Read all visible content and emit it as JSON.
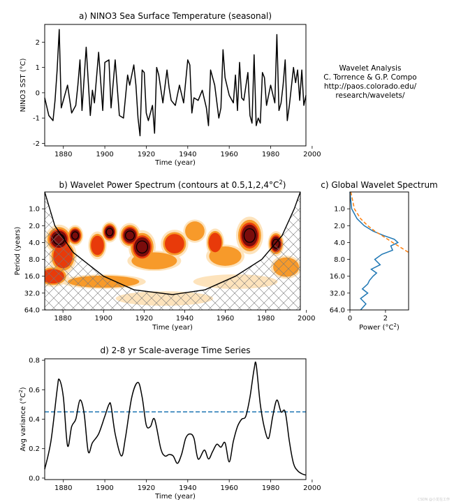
{
  "annotation": {
    "lines": [
      "Wavelet Analysis",
      "C. Torrence & G.P. Compo",
      "http://paos.colorado.edu/",
      "research/wavelets/"
    ]
  },
  "watermark": "CSDN @小龙在工作",
  "colors": {
    "line": "#000000",
    "power_dark": "#7a0c0c",
    "power_red": "#e83a0a",
    "power_orange": "#f79a2a",
    "power_light": "#fde3bc",
    "global_spectrum": "#1f77b4",
    "significance": "#ff7f0e",
    "threshold": "#1f77b4"
  },
  "chart_data": [
    {
      "id": "a",
      "type": "line",
      "title": "a) NINO3 Sea Surface Temperature (seasonal)",
      "xlabel": "Time (year)",
      "ylabel": "NINO3 SST (°C)",
      "xlim": [
        1871,
        1997
      ],
      "ylim": [
        -2.1,
        2.7
      ],
      "xticks": [
        1880,
        1900,
        1920,
        1940,
        1960,
        1980,
        2000
      ],
      "yticks": [
        -2,
        -1,
        0,
        1,
        2
      ],
      "x": [
        1871,
        1873,
        1875,
        1876,
        1877,
        1878,
        1879,
        1880,
        1882,
        1884,
        1886,
        1887,
        1888,
        1889,
        1891,
        1893,
        1894,
        1895,
        1897,
        1899,
        1900,
        1902,
        1903,
        1905,
        1906,
        1907,
        1909,
        1911,
        1912,
        1914,
        1915,
        1916,
        1917,
        1918,
        1919,
        1920,
        1921,
        1923,
        1924,
        1925,
        1926,
        1928,
        1930,
        1931,
        1932,
        1934,
        1936,
        1938,
        1940,
        1941,
        1942,
        1943,
        1945,
        1947,
        1949,
        1950,
        1951,
        1953,
        1955,
        1956,
        1957,
        1958,
        1960,
        1962,
        1963,
        1964,
        1965,
        1966,
        1967,
        1969,
        1970,
        1971,
        1972,
        1973,
        1974,
        1975,
        1976,
        1977,
        1978,
        1980,
        1982,
        1983,
        1984,
        1985,
        1986,
        1987,
        1988,
        1989,
        1991,
        1992,
        1993,
        1994,
        1995,
        1996,
        1997
      ],
      "y": [
        -0.2,
        -0.9,
        -1.1,
        -0.3,
        0.9,
        2.5,
        -0.6,
        -0.3,
        0.3,
        -0.8,
        -0.5,
        0.3,
        1.3,
        -0.7,
        1.8,
        -0.9,
        0.1,
        -0.4,
        1.6,
        -0.7,
        1.2,
        1.3,
        -0.6,
        1.3,
        0.2,
        -0.9,
        -1.0,
        0.7,
        0.3,
        1.1,
        0.3,
        -1.0,
        -1.7,
        0.9,
        0.8,
        -0.8,
        -1.1,
        -0.5,
        -1.6,
        1.0,
        0.7,
        -0.4,
        0.9,
        0.2,
        -0.3,
        -0.5,
        0.3,
        -0.4,
        1.3,
        1.1,
        -0.8,
        -0.2,
        -0.3,
        0.1,
        -0.6,
        -1.3,
        0.9,
        0.3,
        -1.0,
        -0.6,
        1.7,
        0.6,
        -0.1,
        -0.4,
        0.7,
        -0.7,
        1.2,
        -0.2,
        -0.3,
        0.8,
        -0.9,
        -1.2,
        1.5,
        -1.3,
        -1.0,
        -1.2,
        0.8,
        0.6,
        -0.5,
        0.3,
        -0.4,
        2.3,
        -0.7,
        -0.4,
        0.3,
        1.3,
        -1.1,
        -0.5,
        1.0,
        0.4,
        0.9,
        -0.3,
        0.9,
        -0.5,
        -0.1
      ]
    },
    {
      "id": "b",
      "type": "heatmap",
      "title": "b) Wavelet Power Spectrum (contours at 0.5,1,2,4°C²)",
      "xlabel": "Time (year)",
      "ylabel": "Period (years)",
      "xlim": [
        1871,
        1997
      ],
      "ylim": [
        64,
        0.5
      ],
      "xticks": [
        1880,
        1900,
        1920,
        1940,
        1960,
        1980,
        2000
      ],
      "yticks": [
        1.0,
        2.0,
        4.0,
        8.0,
        16.0,
        32.0,
        64.0
      ],
      "contour_levels": [
        0.5,
        1,
        2,
        4
      ],
      "blobs": [
        {
          "year": 1878,
          "period": 3.5,
          "power": 4,
          "wy": 5,
          "wp": 0.35
        },
        {
          "year": 1886,
          "period": 3.0,
          "power": 4,
          "wy": 3,
          "wp": 0.25
        },
        {
          "year": 1903,
          "period": 2.6,
          "power": 4,
          "wy": 3,
          "wp": 0.25
        },
        {
          "year": 1913,
          "period": 3.0,
          "power": 4,
          "wy": 4,
          "wp": 0.3
        },
        {
          "year": 1919,
          "period": 4.8,
          "power": 4,
          "wy": 5,
          "wp": 0.4
        },
        {
          "year": 1972,
          "period": 3.0,
          "power": 4,
          "wy": 5,
          "wp": 0.45
        },
        {
          "year": 1985,
          "period": 4.2,
          "power": 4,
          "wy": 3,
          "wp": 0.3
        },
        {
          "year": 1880,
          "period": 7.0,
          "power": 2,
          "wy": 6,
          "wp": 0.5
        },
        {
          "year": 1897,
          "period": 4.5,
          "power": 2,
          "wy": 4,
          "wp": 0.4
        },
        {
          "year": 1935,
          "period": 4.2,
          "power": 2,
          "wy": 6,
          "wp": 0.4
        },
        {
          "year": 1955,
          "period": 4.0,
          "power": 2,
          "wy": 4,
          "wp": 0.4
        },
        {
          "year": 1875,
          "period": 16,
          "power": 2,
          "wy": 7,
          "wp": 0.3
        },
        {
          "year": 1925,
          "period": 8.5,
          "power": 1,
          "wy": 14,
          "wp": 0.35
        },
        {
          "year": 1960,
          "period": 7.0,
          "power": 1,
          "wy": 10,
          "wp": 0.4
        },
        {
          "year": 1945,
          "period": 2.5,
          "power": 1,
          "wy": 6,
          "wp": 0.4
        },
        {
          "year": 1990,
          "period": 11,
          "power": 1,
          "wy": 8,
          "wp": 0.4
        },
        {
          "year": 1900,
          "period": 20,
          "power": 1,
          "wy": 22,
          "wp": 0.25
        },
        {
          "year": 1965,
          "period": 20,
          "power": 0.5,
          "wy": 26,
          "wp": 0.3
        },
        {
          "year": 1930,
          "period": 40,
          "power": 0.5,
          "wy": 30,
          "wp": 0.3
        }
      ],
      "cone_of_influence": {
        "year": [
          1871,
          1876,
          1885,
          1900,
          1915,
          1934,
          1950,
          1965,
          1978,
          1988,
          1994,
          1997
        ],
        "period": [
          0.5,
          2.0,
          6.0,
          16.0,
          28.0,
          34.0,
          28.0,
          16.0,
          8.0,
          3.0,
          1.0,
          0.5
        ]
      }
    },
    {
      "id": "c",
      "type": "line",
      "title": "c) Global Wavelet Spectrum",
      "xlabel": "Power (°C²)",
      "ylabel": "",
      "xlim": [
        0,
        3.3
      ],
      "ylim": [
        64,
        0.5
      ],
      "xticks": [
        0,
        2
      ],
      "yticks": [
        1.0,
        2.0,
        4.0,
        8.0,
        16.0,
        32.0,
        64.0
      ],
      "series": [
        {
          "kind": "spectrum",
          "period": [
            0.5,
            1.0,
            1.5,
            2.0,
            2.5,
            3.0,
            3.5,
            4.0,
            4.6,
            5.5,
            6.5,
            8.0,
            10,
            12,
            14,
            16,
            19,
            22,
            27,
            32,
            40,
            50,
            64
          ],
          "power": [
            0.0,
            0.1,
            0.4,
            0.8,
            1.3,
            1.9,
            2.5,
            2.7,
            2.3,
            2.4,
            1.8,
            1.4,
            1.7,
            1.2,
            1.5,
            1.3,
            1.1,
            1.0,
            0.7,
            1.0,
            0.6,
            0.9,
            0.6
          ]
        },
        {
          "kind": "significance",
          "period": [
            0.5,
            1.0,
            1.5,
            2.0,
            2.5,
            3.0,
            4.0,
            5.0,
            6.0
          ],
          "power": [
            0.05,
            0.25,
            0.6,
            1.0,
            1.4,
            1.8,
            2.4,
            2.9,
            3.3
          ]
        }
      ]
    },
    {
      "id": "d",
      "type": "line",
      "title": "d) 2-8 yr Scale-average Time Series",
      "xlabel": "Time (year)",
      "ylabel": "Avg variance (°C²)",
      "xlim": [
        1871,
        1997
      ],
      "ylim": [
        -0.01,
        0.81
      ],
      "xticks": [
        1880,
        1900,
        1920,
        1940,
        1960,
        1980,
        2000
      ],
      "yticks": [
        0.0,
        0.2,
        0.4,
        0.6,
        0.8
      ],
      "threshold": 0.45,
      "x": [
        1871,
        1874,
        1877,
        1878,
        1880,
        1882,
        1884,
        1886,
        1888,
        1890,
        1892,
        1894,
        1897,
        1900,
        1902,
        1903,
        1905,
        1908,
        1910,
        1913,
        1916,
        1918,
        1920,
        1922,
        1924,
        1927,
        1929,
        1931,
        1933,
        1935,
        1937,
        1939,
        1941,
        1943,
        1945,
        1948,
        1950,
        1952,
        1954,
        1956,
        1958,
        1960,
        1962,
        1964,
        1966,
        1968,
        1970,
        1972,
        1973,
        1975,
        1977,
        1979,
        1981,
        1983,
        1985,
        1987,
        1989,
        1991,
        1993,
        1995,
        1997
      ],
      "y": [
        0.06,
        0.25,
        0.6,
        0.67,
        0.55,
        0.22,
        0.35,
        0.4,
        0.53,
        0.44,
        0.18,
        0.24,
        0.3,
        0.42,
        0.5,
        0.49,
        0.3,
        0.15,
        0.28,
        0.55,
        0.65,
        0.55,
        0.36,
        0.35,
        0.4,
        0.2,
        0.15,
        0.16,
        0.15,
        0.1,
        0.16,
        0.27,
        0.3,
        0.27,
        0.13,
        0.19,
        0.13,
        0.18,
        0.23,
        0.21,
        0.24,
        0.11,
        0.25,
        0.35,
        0.4,
        0.42,
        0.55,
        0.74,
        0.77,
        0.5,
        0.34,
        0.27,
        0.42,
        0.53,
        0.45,
        0.45,
        0.25,
        0.1,
        0.05,
        0.03,
        0.02
      ]
    }
  ]
}
